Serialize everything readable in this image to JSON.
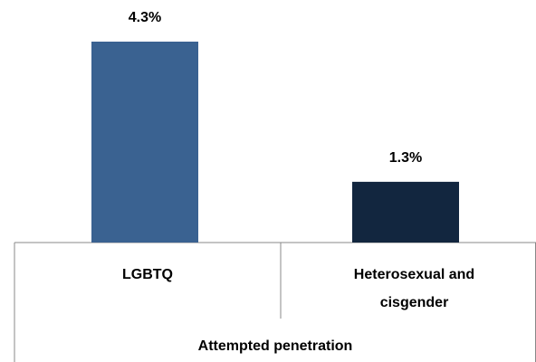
{
  "chart_data": {
    "type": "bar",
    "categories": [
      "LGBTQ",
      "Heterosexual and cisgender"
    ],
    "group_label": "Attempted penetration",
    "values": [
      4.3,
      1.3
    ],
    "value_labels": [
      "4.3%",
      "1.3%"
    ],
    "colors": [
      "#3a6291",
      "#12263f"
    ]
  }
}
